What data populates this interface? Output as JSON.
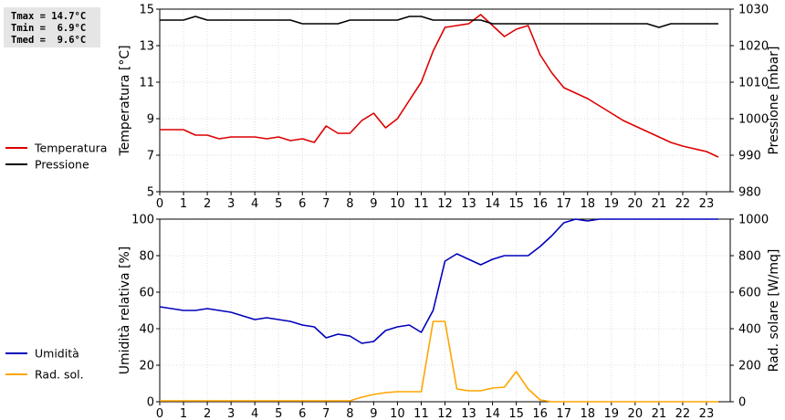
{
  "stats": {
    "lines": [
      "Tmax = 14.7°C",
      "Tmin =  6.9°C",
      "Tmed =  9.6°C"
    ]
  },
  "colors": {
    "temperature": "#dd0000",
    "pressure": "#000000",
    "humidity": "#0000bb",
    "radiation": "#ffa500",
    "stats_box": "#e5e5e5"
  },
  "chart_data": [
    {
      "type": "line",
      "xlabel": "",
      "ylabel": "Temperatura [°C]",
      "y2label": "Pressione [mbar]",
      "xlim": [
        0,
        24
      ],
      "xticks": [
        "0",
        "1",
        "2",
        "3",
        "4",
        "5",
        "6",
        "7",
        "8",
        "9",
        "10",
        "11",
        "12",
        "13",
        "14",
        "15",
        "16",
        "17",
        "18",
        "19",
        "20",
        "21",
        "22",
        "23"
      ],
      "ylim": [
        5,
        15
      ],
      "yticks": [
        "5",
        "7",
        "9",
        "11",
        "13",
        "15"
      ],
      "y2lim": [
        980,
        1030
      ],
      "y2ticks": [
        "980",
        "990",
        "1000",
        "1010",
        "1020",
        "1030"
      ],
      "grid": true,
      "legend": "left",
      "series": [
        {
          "name": "Temperatura",
          "axis": "left",
          "color": "#dd0000",
          "x": [
            0,
            0.5,
            1,
            1.5,
            2,
            2.5,
            3,
            3.5,
            4,
            4.5,
            5,
            5.5,
            6,
            6.5,
            7,
            7.5,
            8,
            8.5,
            9,
            9.5,
            10,
            10.5,
            11,
            11.5,
            12,
            12.5,
            13,
            13.5,
            14,
            14.5,
            15,
            15.5,
            16,
            16.5,
            17,
            17.5,
            18,
            18.5,
            19,
            19.5,
            20,
            20.5,
            21,
            21.5,
            22,
            22.5,
            23,
            23.5
          ],
          "values": [
            8.4,
            8.4,
            8.4,
            8.1,
            8.1,
            7.9,
            8.0,
            8.0,
            8.0,
            7.9,
            8.0,
            7.8,
            7.9,
            7.7,
            8.6,
            8.2,
            8.2,
            8.9,
            9.3,
            8.5,
            9.0,
            10.0,
            11.0,
            12.7,
            14.0,
            14.1,
            14.2,
            14.7,
            14.1,
            13.5,
            13.9,
            14.1,
            12.5,
            11.5,
            10.7,
            10.4,
            10.1,
            9.7,
            9.3,
            8.9,
            8.6,
            8.3,
            8.0,
            7.7,
            7.5,
            7.35,
            7.2,
            6.9
          ]
        },
        {
          "name": "Pressione",
          "axis": "right",
          "color": "#000000",
          "x": [
            0,
            0.5,
            1,
            1.5,
            2,
            2.5,
            3,
            3.5,
            4,
            4.5,
            5,
            5.5,
            6,
            6.5,
            7,
            7.5,
            8,
            8.5,
            9,
            9.5,
            10,
            10.5,
            11,
            11.5,
            12,
            12.5,
            13,
            13.5,
            14,
            14.5,
            15,
            15.5,
            16,
            16.5,
            17,
            17.5,
            18,
            18.5,
            19,
            19.5,
            20,
            20.5,
            21,
            21.5,
            22,
            22.5,
            23,
            23.5
          ],
          "values": [
            1027,
            1027,
            1027,
            1028,
            1027,
            1027,
            1027,
            1027,
            1027,
            1027,
            1027,
            1027,
            1026,
            1026,
            1026,
            1026,
            1027,
            1027,
            1027,
            1027,
            1027,
            1028,
            1028,
            1027,
            1027,
            1027,
            1027,
            1027,
            1026,
            1026,
            1026,
            1026,
            1026,
            1026,
            1026,
            1026,
            1026,
            1026,
            1026,
            1026,
            1026,
            1026,
            1025,
            1026,
            1026,
            1026,
            1026,
            1026
          ]
        }
      ]
    },
    {
      "type": "line",
      "xlabel": "",
      "ylabel": "Umidità relativa [%]",
      "y2label": "Rad. solare [W/mq]",
      "xlim": [
        0,
        24
      ],
      "xticks": [
        "0",
        "1",
        "2",
        "3",
        "4",
        "5",
        "6",
        "7",
        "8",
        "9",
        "10",
        "11",
        "12",
        "13",
        "14",
        "15",
        "16",
        "17",
        "18",
        "19",
        "20",
        "21",
        "22",
        "23"
      ],
      "ylim": [
        0,
        100
      ],
      "yticks": [
        "0",
        "20",
        "40",
        "60",
        "80",
        "100"
      ],
      "y2lim": [
        0,
        1000
      ],
      "y2ticks": [
        "0",
        "200",
        "400",
        "600",
        "800",
        "1000"
      ],
      "grid": true,
      "legend": "left",
      "series": [
        {
          "name": "Umidità",
          "axis": "left",
          "color": "#0000bb",
          "x": [
            0,
            0.5,
            1,
            1.5,
            2,
            2.5,
            3,
            3.5,
            4,
            4.5,
            5,
            5.5,
            6,
            6.5,
            7,
            7.5,
            8,
            8.5,
            9,
            9.5,
            10,
            10.5,
            11,
            11.5,
            12,
            12.5,
            13,
            13.5,
            14,
            14.5,
            15,
            15.5,
            16,
            16.5,
            17,
            17.5,
            18,
            18.5,
            19,
            19.5,
            20,
            20.5,
            21,
            21.5,
            22,
            22.5,
            23,
            23.5
          ],
          "values": [
            52,
            51,
            50,
            50,
            51,
            50,
            49,
            47,
            45,
            46,
            45,
            44,
            42,
            41,
            35,
            37,
            36,
            32,
            33,
            39,
            41,
            42,
            38,
            50,
            77,
            81,
            78,
            75,
            78,
            80,
            80,
            80,
            85,
            91,
            98,
            100,
            99,
            100,
            100,
            100,
            100,
            100,
            100,
            100,
            100,
            100,
            100,
            100
          ]
        },
        {
          "name": "Rad. sol.",
          "axis": "right",
          "color": "#ffa500",
          "x": [
            0,
            0.5,
            1,
            1.5,
            2,
            2.5,
            3,
            3.5,
            4,
            4.5,
            5,
            5.5,
            6,
            6.5,
            7,
            7.5,
            8,
            8.5,
            9,
            9.5,
            10,
            10.5,
            11,
            11.5,
            12,
            12.5,
            13,
            13.5,
            14,
            14.5,
            15,
            15.5,
            16,
            16.5,
            17,
            17.5,
            18,
            18.5,
            19,
            19.5,
            20,
            20.5,
            21,
            21.5,
            22,
            22.5,
            23,
            23.5
          ],
          "values": [
            5,
            5,
            5,
            5,
            5,
            5,
            5,
            5,
            5,
            5,
            5,
            5,
            5,
            5,
            5,
            5,
            5,
            25,
            40,
            50,
            55,
            55,
            55,
            440,
            440,
            70,
            60,
            60,
            75,
            80,
            165,
            70,
            10,
            0,
            0,
            0,
            0,
            0,
            0,
            0,
            0,
            0,
            0,
            0,
            0,
            0,
            0,
            0
          ]
        }
      ]
    }
  ]
}
